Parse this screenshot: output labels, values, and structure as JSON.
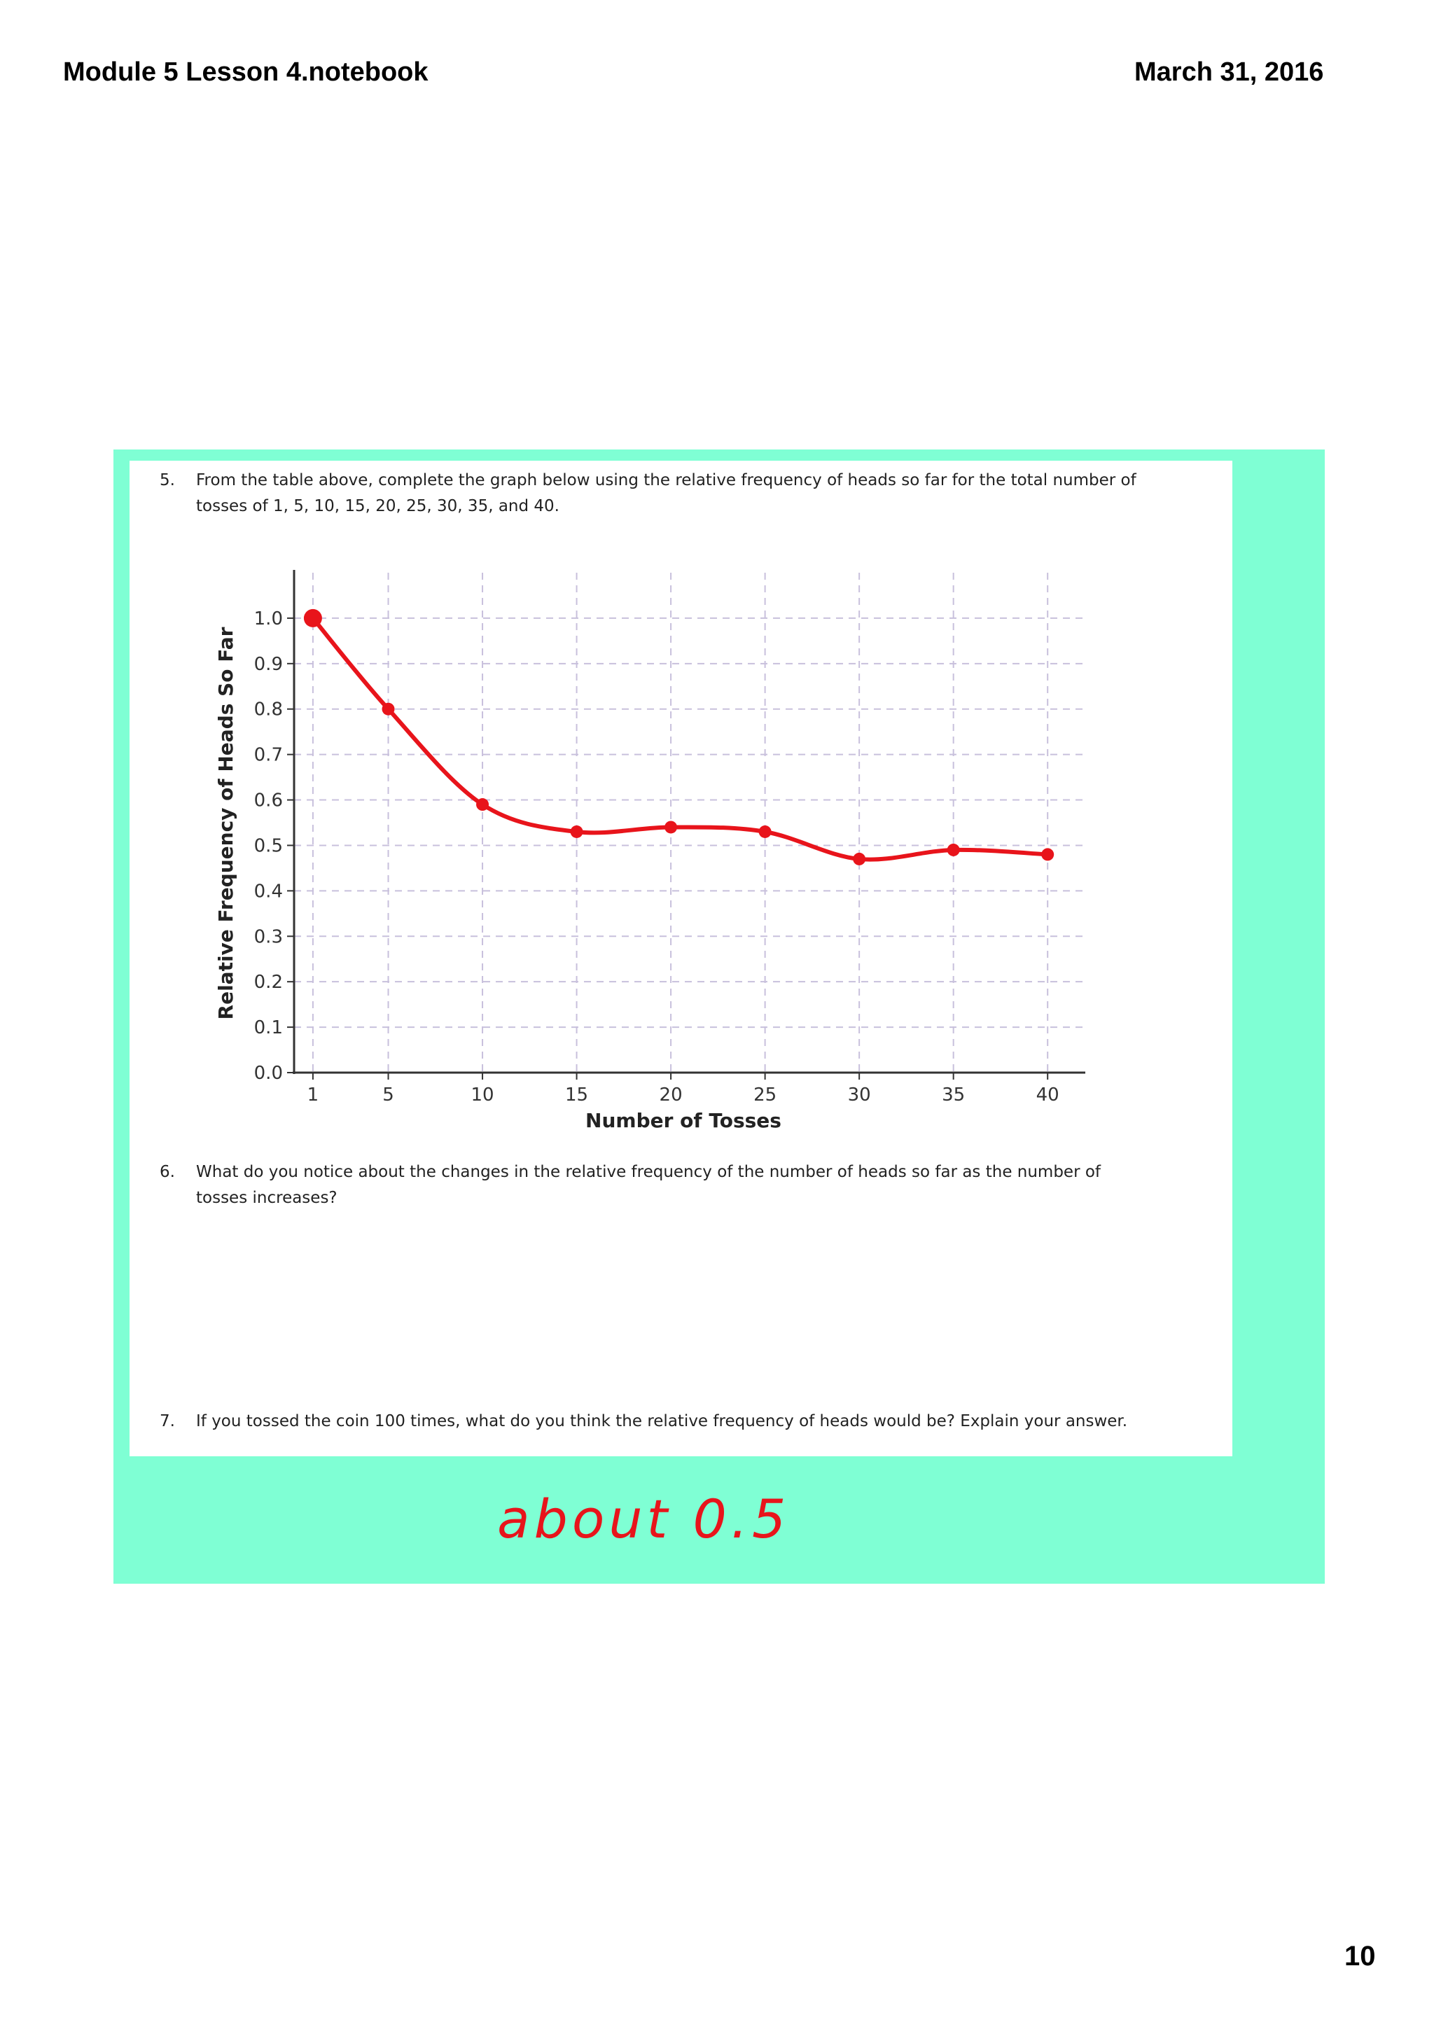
{
  "header": {
    "file_title": "Module 5 Lesson 4.notebook",
    "date": "March 31, 2016"
  },
  "footer": {
    "page_number": "10"
  },
  "questions": [
    {
      "number": "5.",
      "lines": [
        "From the table above, complete the graph below using the relative frequency of heads so far for the total number of",
        "tosses of 1, 5, 10, 15, 20, 25, 30, 35, and 40."
      ]
    },
    {
      "number": "6.",
      "lines": [
        "What do you notice about the changes in the relative frequency of the number of heads so far as the number of",
        "tosses increases?"
      ]
    },
    {
      "number": "7.",
      "lines": [
        "If you tossed the coin 100 times, what do you think the relative frequency of heads would be?  Explain your answer."
      ]
    }
  ],
  "chart_data": {
    "type": "line",
    "title": "",
    "xlabel": "Number of Tosses",
    "ylabel": "Relative Frequency of Heads So Far",
    "x_ticks": [
      1,
      5,
      10,
      15,
      20,
      25,
      30,
      35,
      40
    ],
    "x_tick_labels": [
      "1",
      "5",
      "10",
      "15",
      "20",
      "25",
      "30",
      "35",
      "40"
    ],
    "y_ticks": [
      0,
      0.1,
      0.2,
      0.3,
      0.4,
      0.5,
      0.6,
      0.7,
      0.8,
      0.9,
      1.0
    ],
    "y_tick_labels": [
      "0.0",
      "0.1",
      "0.2",
      "0.3",
      "0.4",
      "0.5",
      "0.6",
      "0.7",
      "0.8",
      "0.9",
      "1.0"
    ],
    "xlim": [
      0,
      42
    ],
    "ylim": [
      0,
      1.1
    ],
    "grid": true,
    "series": [
      {
        "color": "#e8141b",
        "x": [
          1,
          5,
          10,
          15,
          20,
          25,
          30,
          35,
          40
        ],
        "y": [
          1.0,
          0.8,
          0.59,
          0.53,
          0.54,
          0.53,
          0.47,
          0.49,
          0.48
        ]
      }
    ]
  },
  "handwritten_answer": "about 0.5",
  "colors": {
    "frame": "#7fffd4",
    "ink": "#e8141b",
    "grid": "#c8c0dc"
  }
}
